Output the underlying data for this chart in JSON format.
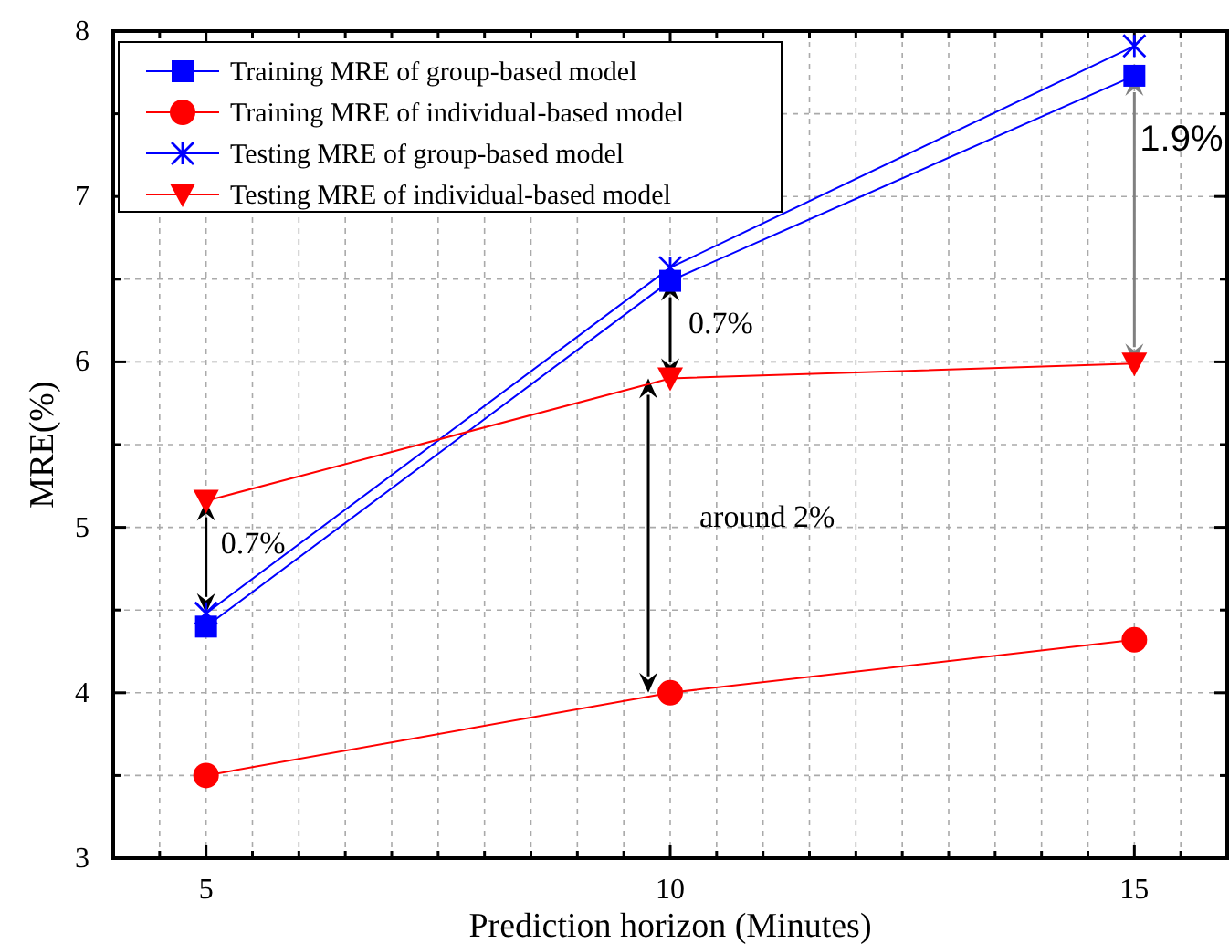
{
  "chart_data": {
    "type": "line",
    "xlabel": "Prediction horizon (Minutes)",
    "ylabel": "MRE(%)",
    "x": [
      5,
      10,
      15
    ],
    "series": [
      {
        "name": "Training MRE of group-based model",
        "color": "#0000ff",
        "marker": "square",
        "values": [
          4.4,
          6.49,
          7.73
        ]
      },
      {
        "name": "Training MRE of individual-based model",
        "color": "#ff0000",
        "marker": "circle",
        "values": [
          3.5,
          4.0,
          4.32
        ]
      },
      {
        "name": "Testing MRE of group-based model",
        "color": "#0000ff",
        "marker": "cross",
        "values": [
          4.48,
          6.57,
          7.91
        ]
      },
      {
        "name": "Testing MRE of individual-based model",
        "color": "#ff0000",
        "marker": "triangle",
        "values": [
          5.16,
          5.9,
          5.99
        ]
      }
    ],
    "xlim": [
      4,
      16
    ],
    "xticks": [
      {
        "value": 4.5,
        "label": null
      },
      5,
      {
        "value": 5.5,
        "label": null
      },
      {
        "value": 6,
        "label": null
      },
      {
        "value": 6.5,
        "label": null
      },
      {
        "value": 7,
        "label": null
      },
      {
        "value": 7.5,
        "label": null
      },
      {
        "value": 8,
        "label": null
      },
      {
        "value": 8.5,
        "label": null
      },
      {
        "value": 9,
        "label": null
      },
      {
        "value": 9.5,
        "label": null
      },
      10,
      {
        "value": 10.5,
        "label": null
      },
      {
        "value": 11,
        "label": null
      },
      {
        "value": 11.5,
        "label": null
      },
      {
        "value": 12,
        "label": null
      },
      {
        "value": 12.5,
        "label": null
      },
      {
        "value": 13,
        "label": null
      },
      {
        "value": 13.5,
        "label": null
      },
      {
        "value": 14,
        "label": null
      },
      {
        "value": 14.5,
        "label": null
      },
      15,
      {
        "value": 15.5,
        "label": null
      }
    ],
    "ylim": [
      3,
      8
    ],
    "yticks": [
      3,
      {
        "value": 3.5,
        "label": null
      },
      4,
      {
        "value": 4.5,
        "label": null
      },
      5,
      {
        "value": 5.5,
        "label": null
      },
      6,
      {
        "value": 6.5,
        "label": null
      },
      7,
      {
        "value": 7.5,
        "label": null
      },
      8
    ],
    "grid": true,
    "legend": "top left",
    "line_style": "solid",
    "annotations": [
      "0.7%",
      "0.7%",
      {
        "text": "1.9%",
        "x": 15,
        "y": 7.73
      },
      "around 2%"
    ]
  }
}
